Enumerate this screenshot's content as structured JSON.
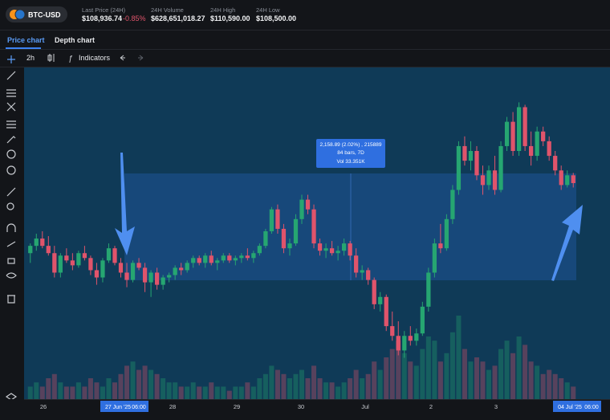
{
  "header": {
    "symbol": "BTC-USD",
    "stats": [
      {
        "label": "Last Price (24H)",
        "value": "$108,936.74",
        "change": "-0.85%"
      },
      {
        "label": "24H Volume",
        "value": "$628,651,018.27"
      },
      {
        "label": "24H High",
        "value": "$110,590.00"
      },
      {
        "label": "24H Low",
        "value": "$108,500.00"
      }
    ]
  },
  "tabs": [
    "Price chart",
    "Depth chart"
  ],
  "toolbar": {
    "interval": "2h",
    "indicators": "Indicators"
  },
  "chart": {
    "type": "candlestick",
    "up_color": "#26a671",
    "down_color": "#e0546b",
    "ylim": [
      104500,
      111300
    ],
    "volume_lim": [
      0,
      25
    ],
    "candles": [
      [
        107500,
        107700,
        107300,
        107650,
        3
      ],
      [
        107650,
        107900,
        107550,
        107800,
        4
      ],
      [
        107800,
        107950,
        107600,
        107650,
        3
      ],
      [
        107650,
        107850,
        107450,
        107500,
        5
      ],
      [
        107500,
        107650,
        107000,
        107100,
        6
      ],
      [
        107100,
        107500,
        107000,
        107450,
        4
      ],
      [
        107450,
        107600,
        107300,
        107350,
        3
      ],
      [
        107350,
        107500,
        107150,
        107250,
        3
      ],
      [
        107250,
        107550,
        107200,
        107500,
        4
      ],
      [
        107500,
        107650,
        107350,
        107400,
        3
      ],
      [
        107400,
        107450,
        107050,
        107150,
        5
      ],
      [
        107150,
        107300,
        106850,
        107000,
        4
      ],
      [
        107000,
        107400,
        106900,
        107350,
        3
      ],
      [
        107350,
        107700,
        107300,
        107600,
        5
      ],
      [
        107600,
        107650,
        107250,
        107300,
        4
      ],
      [
        107300,
        107400,
        107000,
        107100,
        6
      ],
      [
        107100,
        107300,
        106800,
        106950,
        8
      ],
      [
        106950,
        107350,
        106900,
        107300,
        9
      ],
      [
        107300,
        107400,
        107150,
        107200,
        7
      ],
      [
        107200,
        107300,
        106700,
        106900,
        8
      ],
      [
        106900,
        107150,
        106600,
        107100,
        7
      ],
      [
        107100,
        107200,
        106750,
        106850,
        6
      ],
      [
        106850,
        107050,
        106750,
        107000,
        5
      ],
      [
        107000,
        107100,
        106900,
        107050,
        4
      ],
      [
        107050,
        107250,
        106950,
        107200,
        4
      ],
      [
        107200,
        107300,
        107050,
        107150,
        3
      ],
      [
        107150,
        107350,
        107100,
        107300,
        3
      ],
      [
        107300,
        107450,
        107200,
        107400,
        4
      ],
      [
        107400,
        107450,
        107250,
        107300,
        3
      ],
      [
        107300,
        107500,
        107200,
        107450,
        3
      ],
      [
        107450,
        107550,
        107250,
        107300,
        4
      ],
      [
        107300,
        107400,
        107150,
        107350,
        3
      ],
      [
        107350,
        107500,
        107300,
        107450,
        3
      ],
      [
        107450,
        107500,
        107300,
        107350,
        2
      ],
      [
        107350,
        107450,
        107250,
        107400,
        3
      ],
      [
        107400,
        107500,
        107300,
        107450,
        3
      ],
      [
        107450,
        107600,
        107350,
        107400,
        4
      ],
      [
        107400,
        107550,
        107300,
        107500,
        3
      ],
      [
        107500,
        107700,
        107450,
        107650,
        5
      ],
      [
        107650,
        108000,
        107600,
        107950,
        6
      ],
      [
        107950,
        108450,
        107900,
        108400,
        8
      ],
      [
        108400,
        108500,
        107900,
        108000,
        7
      ],
      [
        108000,
        108100,
        107500,
        107600,
        6
      ],
      [
        107600,
        107800,
        107450,
        107700,
        5
      ],
      [
        107700,
        108300,
        107650,
        108200,
        6
      ],
      [
        108200,
        108700,
        108100,
        108600,
        7
      ],
      [
        108600,
        108700,
        108300,
        108400,
        5
      ],
      [
        108400,
        108500,
        107600,
        107700,
        8
      ],
      [
        107700,
        107800,
        107450,
        107550,
        5
      ],
      [
        107550,
        107700,
        107400,
        107600,
        4
      ],
      [
        107600,
        107750,
        107450,
        107500,
        4
      ],
      [
        107500,
        107650,
        107350,
        107550,
        3
      ],
      [
        107550,
        107800,
        107450,
        107700,
        4
      ],
      [
        107700,
        107750,
        107350,
        107450,
        5
      ],
      [
        107450,
        107600,
        107000,
        107100,
        7
      ],
      [
        107100,
        107250,
        106950,
        107150,
        5
      ],
      [
        107150,
        107200,
        106850,
        106950,
        6
      ],
      [
        106950,
        107000,
        106350,
        106450,
        9
      ],
      [
        106450,
        106700,
        106300,
        106600,
        7
      ],
      [
        106600,
        106650,
        105900,
        106000,
        10
      ],
      [
        106000,
        106300,
        105700,
        105800,
        12
      ],
      [
        105800,
        106100,
        105400,
        105500,
        14
      ],
      [
        105500,
        105900,
        105350,
        105800,
        11
      ],
      [
        105800,
        106000,
        105600,
        105700,
        9
      ],
      [
        105700,
        105950,
        105600,
        105850,
        8
      ],
      [
        105850,
        106500,
        105800,
        106400,
        12
      ],
      [
        106400,
        107200,
        106300,
        107100,
        15
      ],
      [
        107100,
        107800,
        107000,
        107700,
        14
      ],
      [
        107700,
        108100,
        107500,
        107600,
        9
      ],
      [
        107600,
        108300,
        107550,
        108200,
        11
      ],
      [
        108200,
        108900,
        108100,
        108800,
        16
      ],
      [
        108800,
        109800,
        108700,
        109700,
        20
      ],
      [
        109700,
        109900,
        109300,
        109400,
        12
      ],
      [
        109400,
        109800,
        109200,
        109600,
        9
      ],
      [
        109600,
        109700,
        109000,
        109100,
        10
      ],
      [
        109100,
        109300,
        108700,
        108900,
        9
      ],
      [
        108900,
        109300,
        108800,
        109200,
        7
      ],
      [
        109200,
        109500,
        108700,
        108800,
        8
      ],
      [
        108800,
        109800,
        108750,
        109700,
        12
      ],
      [
        109700,
        110300,
        109600,
        110200,
        14
      ],
      [
        110200,
        110400,
        109500,
        109600,
        11
      ],
      [
        109600,
        110600,
        109500,
        110500,
        15
      ],
      [
        110500,
        110550,
        109600,
        109700,
        13
      ],
      [
        109700,
        110000,
        109300,
        109500,
        9
      ],
      [
        109500,
        110100,
        109400,
        110000,
        8
      ],
      [
        110000,
        110100,
        109700,
        109800,
        6
      ],
      [
        109800,
        109900,
        109400,
        109500,
        7
      ],
      [
        109500,
        109600,
        109100,
        109200,
        6
      ],
      [
        109200,
        109300,
        108800,
        108900,
        5
      ],
      [
        108900,
        109200,
        108850,
        109100,
        4
      ],
      [
        109100,
        109150,
        108850,
        108940,
        3
      ]
    ],
    "measure": [
      "2,158.89 (2.02%) , 215889",
      "84 bars, 7D",
      "Vol 33.351K"
    ],
    "x_labels": [
      "26",
      "28",
      "29",
      "30",
      "Jul",
      "2",
      "3"
    ],
    "range_start": [
      "27 Jun '25",
      "06:00"
    ],
    "range_end": [
      "04 Jul '25",
      "06:00"
    ]
  }
}
